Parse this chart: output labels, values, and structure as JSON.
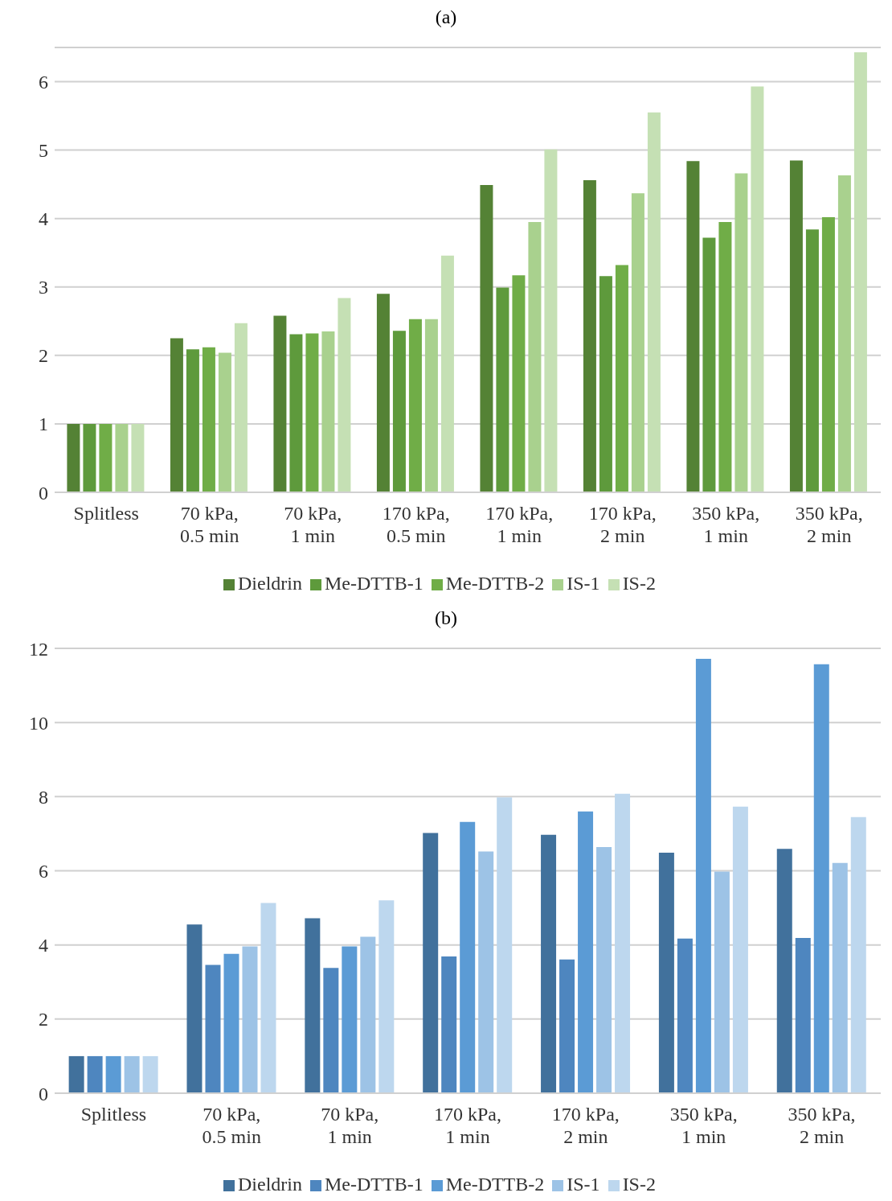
{
  "chart_data": [
    {
      "type": "bar",
      "title": "(a)",
      "categories": [
        "Splitless",
        "70 kPa, 0.5 min",
        "70 kPa, 1 min",
        "170 kPa, 0.5 min",
        "170 kPa, 1 min",
        "170 kPa, 2 min",
        "350 kPa, 1 min",
        "350 kPa, 2 min"
      ],
      "series": [
        {
          "name": "Dieldrin",
          "color": "#548235",
          "values": [
            1,
            2.25,
            2.58,
            2.9,
            4.49,
            4.56,
            4.84,
            4.85
          ]
        },
        {
          "name": "Me-DTTB-1",
          "color": "#5e9a3c",
          "values": [
            1,
            2.09,
            2.31,
            2.36,
            2.99,
            3.16,
            3.72,
            3.84
          ]
        },
        {
          "name": "Me-DTTB-2",
          "color": "#70ad47",
          "values": [
            1,
            2.12,
            2.32,
            2.53,
            3.17,
            3.32,
            3.95,
            4.02
          ]
        },
        {
          "name": "IS-1",
          "color": "#a9d18e",
          "values": [
            1,
            2.04,
            2.35,
            2.53,
            3.95,
            4.37,
            4.66,
            4.63
          ]
        },
        {
          "name": "IS-2",
          "color": "#c5e0b4",
          "values": [
            1,
            2.47,
            2.84,
            3.46,
            5.01,
            5.55,
            5.93,
            6.43
          ]
        }
      ],
      "ylim": [
        0,
        6.5
      ],
      "yticks": [
        0,
        1,
        2,
        3,
        4,
        5,
        6
      ],
      "grid": "y",
      "legend": "bottom"
    },
    {
      "type": "bar",
      "title": "(b)",
      "categories": [
        "Splitless",
        "70 kPa, 0.5 min",
        "70 kPa, 1 min",
        "170 kPa, 1 min",
        "170 kPa, 2 min",
        "350 kPa, 1 min",
        "350 kPa, 2 min"
      ],
      "series": [
        {
          "name": "Dieldrin",
          "color": "#41719c",
          "values": [
            1,
            4.55,
            4.72,
            7.02,
            6.97,
            6.49,
            6.59
          ]
        },
        {
          "name": "Me-DTTB-1",
          "color": "#4e86bf",
          "values": [
            1,
            3.46,
            3.38,
            3.69,
            3.61,
            4.17,
            4.19
          ]
        },
        {
          "name": "Me-DTTB-2",
          "color": "#5b9bd5",
          "values": [
            1,
            3.76,
            3.96,
            7.32,
            7.6,
            11.72,
            11.57
          ]
        },
        {
          "name": "IS-1",
          "color": "#9dc3e6",
          "values": [
            1,
            3.96,
            4.22,
            6.52,
            6.64,
            5.98,
            6.21
          ]
        },
        {
          "name": "IS-2",
          "color": "#bdd7ee",
          "values": [
            1,
            5.13,
            5.2,
            7.98,
            8.08,
            7.73,
            7.45
          ]
        }
      ],
      "ylim": [
        0,
        12
      ],
      "yticks": [
        0,
        2,
        4,
        6,
        8,
        10,
        12
      ],
      "grid": "y",
      "legend": "bottom"
    }
  ]
}
